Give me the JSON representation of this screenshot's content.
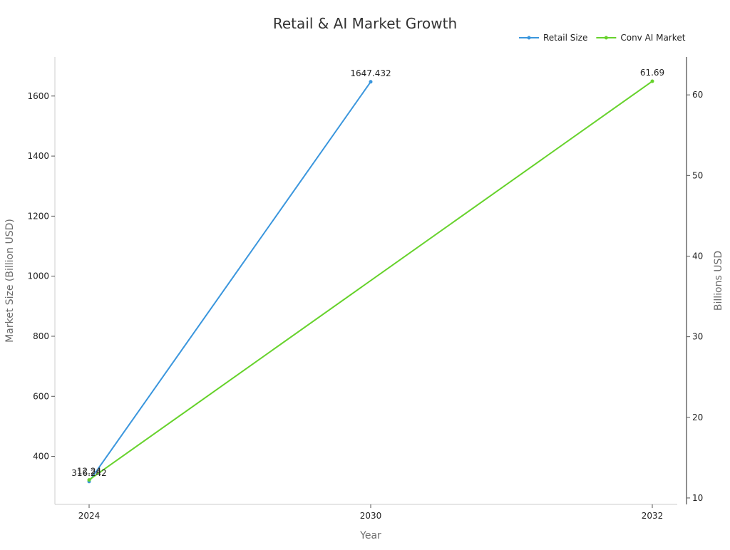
{
  "chart_data": {
    "type": "line",
    "title": "Retail & AI Market Growth",
    "xlabel": "Year",
    "ylabel_left": "Market Size (Billion USD)",
    "ylabel_right": "Billions USD",
    "x_ticks": [
      "2024",
      "2030",
      "2032"
    ],
    "y_left_ticks": [
      400,
      600,
      800,
      1000,
      1200,
      1400,
      1600
    ],
    "y_left_range": [
      240,
      1730
    ],
    "y_right_ticks": [
      10,
      20,
      30,
      40,
      50,
      60
    ],
    "y_right_range": [
      9.2,
      64.7
    ],
    "legend_position": "top-right",
    "grid": false,
    "series": [
      {
        "name": "Retail Size",
        "axis": "left",
        "color": "#3a96dd",
        "points": [
          {
            "x": "2024",
            "y": 316.242,
            "label": "316.242"
          },
          {
            "x": "2030",
            "y": 1647.432,
            "label": "1647.432"
          }
        ]
      },
      {
        "name": "Conv AI Market",
        "axis": "right",
        "color": "#66d22b",
        "points": [
          {
            "x": "2024",
            "y": 12.24,
            "label": "12.24"
          },
          {
            "x": "2032",
            "y": 61.69,
            "label": "61.69"
          }
        ]
      }
    ]
  }
}
